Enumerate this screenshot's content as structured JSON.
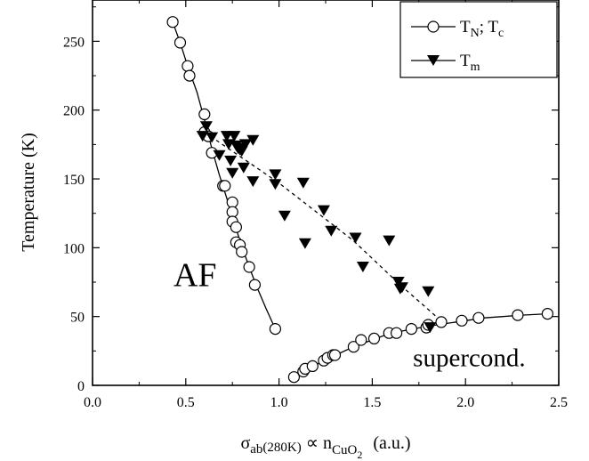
{
  "chart_data": {
    "type": "scatter",
    "title": "",
    "xlabel": {
      "main": "σ",
      "sub1": "ab",
      "paren": "(280K)",
      "prop": " ∝ n",
      "sub2": "CuO",
      "sub3": "2",
      "units": "(a.u.)"
    },
    "ylabel": "Temperature  (K)",
    "xlim": [
      0.0,
      2.5
    ],
    "ylim": [
      0,
      280
    ],
    "xticks": [
      "0.0",
      "0.5",
      "1.0",
      "1.5",
      "2.0",
      "2.5"
    ],
    "yticks": [
      "0",
      "50",
      "100",
      "150",
      "200",
      "250"
    ],
    "grid": false,
    "legend_position": "top-right",
    "legend": [
      {
        "marker": "open-circle",
        "label_parts": [
          "T",
          "N",
          "; T",
          "c"
        ]
      },
      {
        "marker": "filled-down-triangle",
        "label_parts": [
          "T",
          "m"
        ]
      }
    ],
    "annotations": [
      {
        "text": "AF",
        "x": 0.55,
        "y": 72
      },
      {
        "text": "supercond.",
        "x": 2.02,
        "y": 14
      }
    ],
    "series": [
      {
        "marker": "open-circle",
        "points": [
          [
            0.43,
            264
          ],
          [
            0.47,
            249
          ],
          [
            0.51,
            232
          ],
          [
            0.52,
            225
          ],
          [
            0.6,
            197
          ],
          [
            0.6,
            184
          ],
          [
            0.62,
            181
          ],
          [
            0.64,
            169
          ],
          [
            0.7,
            145
          ],
          [
            0.71,
            145
          ],
          [
            0.75,
            133
          ],
          [
            0.75,
            126
          ],
          [
            0.75,
            119
          ],
          [
            0.77,
            115
          ],
          [
            0.77,
            104
          ],
          [
            0.79,
            102
          ],
          [
            0.8,
            97
          ],
          [
            0.84,
            86
          ],
          [
            0.87,
            73
          ],
          [
            0.98,
            41
          ],
          [
            1.08,
            6
          ],
          [
            1.13,
            10
          ],
          [
            1.14,
            12
          ],
          [
            1.18,
            14
          ],
          [
            1.24,
            18
          ],
          [
            1.26,
            20
          ],
          [
            1.29,
            22
          ],
          [
            1.3,
            22
          ],
          [
            1.4,
            28
          ],
          [
            1.44,
            33
          ],
          [
            1.51,
            34
          ],
          [
            1.59,
            38
          ],
          [
            1.63,
            38
          ],
          [
            1.71,
            41
          ],
          [
            1.79,
            42
          ],
          [
            1.8,
            44
          ],
          [
            1.87,
            46
          ],
          [
            1.98,
            47
          ],
          [
            2.07,
            49
          ],
          [
            2.28,
            51
          ],
          [
            2.44,
            52
          ]
        ]
      },
      {
        "marker": "filled-down-triangle",
        "points": [
          [
            0.59,
            181
          ],
          [
            0.61,
            188
          ],
          [
            0.64,
            180
          ],
          [
            0.68,
            167
          ],
          [
            0.72,
            181
          ],
          [
            0.73,
            175
          ],
          [
            0.74,
            163
          ],
          [
            0.75,
            154
          ],
          [
            0.76,
            181
          ],
          [
            0.77,
            174
          ],
          [
            0.78,
            172
          ],
          [
            0.79,
            171
          ],
          [
            0.8,
            170
          ],
          [
            0.81,
            158
          ],
          [
            0.82,
            175
          ],
          [
            0.86,
            178
          ],
          [
            0.86,
            148
          ],
          [
            0.98,
            153
          ],
          [
            0.98,
            146
          ],
          [
            1.03,
            123
          ],
          [
            1.13,
            147
          ],
          [
            1.14,
            103
          ],
          [
            1.24,
            127
          ],
          [
            1.28,
            112
          ],
          [
            1.41,
            107
          ],
          [
            1.45,
            86
          ],
          [
            1.59,
            105
          ],
          [
            1.64,
            75
          ],
          [
            1.65,
            70
          ],
          [
            1.66,
            71
          ],
          [
            1.8,
            68
          ],
          [
            1.81,
            42
          ]
        ]
      }
    ],
    "lines": [
      {
        "style": "solid",
        "points": [
          [
            0.43,
            264
          ],
          [
            0.47,
            249
          ],
          [
            0.51,
            232
          ],
          [
            0.56,
            213
          ],
          [
            0.6,
            193
          ],
          [
            0.64,
            172
          ],
          [
            0.68,
            153
          ],
          [
            0.72,
            136
          ],
          [
            0.76,
            118
          ],
          [
            0.8,
            101
          ],
          [
            0.84,
            86
          ],
          [
            0.88,
            72
          ],
          [
            0.93,
            56
          ],
          [
            0.98,
            41
          ]
        ]
      },
      {
        "style": "solid",
        "points": [
          [
            1.08,
            6
          ],
          [
            1.14,
            11
          ],
          [
            1.2,
            15
          ],
          [
            1.26,
            19
          ],
          [
            1.32,
            23
          ],
          [
            1.4,
            28
          ],
          [
            1.48,
            32
          ],
          [
            1.56,
            36
          ],
          [
            1.64,
            39
          ],
          [
            1.72,
            41
          ],
          [
            1.8,
            43
          ],
          [
            1.9,
            45
          ],
          [
            2.0,
            47
          ],
          [
            2.1,
            49
          ],
          [
            2.2,
            50
          ],
          [
            2.3,
            51
          ],
          [
            2.44,
            52
          ]
        ]
      },
      {
        "style": "dashed",
        "points": [
          [
            0.6,
            184
          ],
          [
            1.0,
            147
          ],
          [
            1.4,
            105
          ],
          [
            1.65,
            73
          ],
          [
            1.86,
            48
          ]
        ]
      }
    ]
  }
}
